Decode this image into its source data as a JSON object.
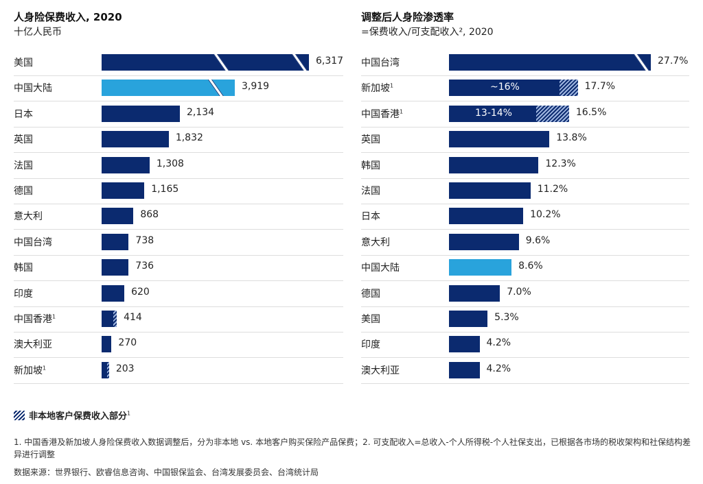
{
  "colors": {
    "primary": "#0b2a6f",
    "highlight": "#29a3dc",
    "hatch": "#9fb6e0"
  },
  "chart_data": [
    {
      "type": "bar",
      "orientation": "horizontal",
      "title": "人身险保费收入, 2020",
      "subtitle": "十亿人民币",
      "categories": [
        "美国",
        "中国大陆",
        "日本",
        "英国",
        "法国",
        "德国",
        "意大利",
        "中国台湾",
        "韩国",
        "印度",
        "中国香港",
        "澳大利亚",
        "新加坡"
      ],
      "footnote_marks": [
        "",
        "",
        "",
        "",
        "",
        "",
        "",
        "",
        "",
        "",
        "1",
        "",
        "1"
      ],
      "values": [
        6317,
        3919,
        2134,
        1832,
        1308,
        1165,
        868,
        738,
        736,
        620,
        414,
        270,
        203
      ],
      "value_labels": [
        "6,317",
        "3,919",
        "2,134",
        "1,832",
        "1,308",
        "1,165",
        "868",
        "738",
        "736",
        "620",
        "414",
        "270",
        "203"
      ],
      "non_local_share": [
        0,
        0,
        0,
        0,
        0,
        0,
        0,
        0,
        0,
        0,
        0.25,
        0,
        0.25
      ],
      "highlight_index": 1,
      "axis_breaks": [
        2,
        1,
        0,
        0,
        0,
        0,
        0,
        0,
        0,
        0,
        0,
        0,
        0
      ]
    },
    {
      "type": "bar",
      "orientation": "horizontal",
      "title": "调整后人身险渗透率",
      "subtitle": "=保费收入/可支配收入², 2020",
      "categories": [
        "中国台湾",
        "新加坡",
        "中国香港",
        "英国",
        "韩国",
        "法国",
        "日本",
        "意大利",
        "中国大陆",
        "德国",
        "美国",
        "印度",
        "澳大利亚"
      ],
      "footnote_marks": [
        "",
        "1",
        "1",
        "",
        "",
        "",
        "",
        "",
        "",
        "",
        "",
        "",
        ""
      ],
      "values": [
        27.7,
        17.7,
        16.5,
        13.8,
        12.3,
        11.2,
        10.2,
        9.6,
        8.6,
        7.0,
        5.3,
        4.2,
        4.2
      ],
      "value_labels": [
        "27.7%",
        "17.7%",
        "16.5%",
        "13.8%",
        "12.3%",
        "11.2%",
        "10.2%",
        "9.6%",
        "8.6%",
        "7.0%",
        "5.3%",
        "4.2%",
        "4.2%"
      ],
      "local_values": [
        null,
        16,
        13.5,
        null,
        null,
        null,
        null,
        null,
        null,
        null,
        null,
        null,
        null
      ],
      "inner_labels": [
        "",
        "~16%",
        "13-14%",
        "",
        "",
        "",
        "",
        "",
        "",
        "",
        "",
        "",
        ""
      ],
      "highlight_index": 8,
      "axis_breaks": [
        1,
        0,
        0,
        0,
        0,
        0,
        0,
        0,
        0,
        0,
        0,
        0,
        0
      ]
    }
  ],
  "legend": {
    "label": "非本地客户保费收入部分",
    "mark": "1"
  },
  "notes": {
    "footnotes": "1. 中国香港及新加坡人身险保费收入数据调整后，分为非本地 vs. 本地客户购买保险产品保费；2. 可支配收入=总收入-个人所得税-个人社保支出，已根据各市场的税收架构和社保结构差异进行调整",
    "source": "数据来源：世界银行、欧睿信息咨询、中国银保监会、台湾发展委员会、台湾统计局"
  }
}
